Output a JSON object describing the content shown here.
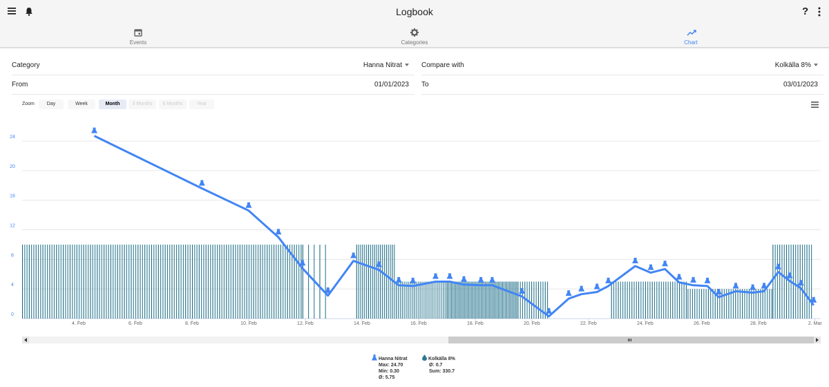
{
  "app": {
    "title": "Logbook"
  },
  "tabs": [
    {
      "label": "Events",
      "icon": "calendar-icon"
    },
    {
      "label": "Categories",
      "icon": "gear-icon"
    },
    {
      "label": "Chart",
      "icon": "trending-up-icon",
      "active": true
    }
  ],
  "filters": {
    "category_label": "Category",
    "category_value": "Hanna Nitrat",
    "compare_label": "Compare with",
    "compare_value": "Kolkälla 8%",
    "from_label": "From",
    "from_value": "01/01/2023",
    "to_label": "To",
    "to_value": "03/01/2023"
  },
  "zoom": {
    "label": "Zoom",
    "options": [
      "Day",
      "Week",
      "Month",
      "3 Months",
      "6 Months",
      "Year"
    ],
    "selected": "Month",
    "disabled": [
      "3 Months",
      "6 Months",
      "Year"
    ]
  },
  "colors": {
    "accent": "#4285f4",
    "bars": "#2d7a93",
    "bars_dark": "#1f6a80"
  },
  "chart_data": {
    "type": "line",
    "x_axis": {
      "unit": "day of February 2023 (2 Mar = 30)",
      "range": [
        2.0,
        30.2
      ],
      "tick_labels": [
        "4. Feb",
        "6. Feb",
        "8. Feb",
        "10. Feb",
        "12. Feb",
        "14. Feb",
        "16. Feb",
        "18. Feb",
        "20. Feb",
        "22. Feb",
        "24. Feb",
        "26. Feb",
        "28. Feb",
        "2. Mar"
      ],
      "tick_values": [
        4,
        6,
        8,
        10,
        12,
        14,
        16,
        18,
        20,
        22,
        24,
        26,
        28,
        30
      ]
    },
    "y_axis": {
      "range": [
        0,
        27
      ],
      "tick_labels": [
        "0",
        "4",
        "8",
        "12",
        "16",
        "20",
        "24"
      ],
      "tick_values": [
        0,
        4,
        8,
        12,
        16,
        20,
        24
      ],
      "grid": true
    },
    "series": [
      {
        "name": "Hanna Nitrat",
        "type": "line",
        "points": [
          [
            4.55,
            24.7
          ],
          [
            8.35,
            17.6
          ],
          [
            10.0,
            14.6
          ],
          [
            11.05,
            11.0
          ],
          [
            11.9,
            6.8
          ],
          [
            12.8,
            3.1
          ],
          [
            13.7,
            7.8
          ],
          [
            14.6,
            6.6
          ],
          [
            15.3,
            4.5
          ],
          [
            15.8,
            4.4
          ],
          [
            16.6,
            5.0
          ],
          [
            17.1,
            5.0
          ],
          [
            17.6,
            4.6
          ],
          [
            18.2,
            4.5
          ],
          [
            18.6,
            4.5
          ],
          [
            19.65,
            3.0
          ],
          [
            20.6,
            0.3
          ],
          [
            21.3,
            2.7
          ],
          [
            21.75,
            3.3
          ],
          [
            22.3,
            3.6
          ],
          [
            22.7,
            4.4
          ],
          [
            23.65,
            7.1
          ],
          [
            24.2,
            6.2
          ],
          [
            24.7,
            6.7
          ],
          [
            25.2,
            4.9
          ],
          [
            25.7,
            4.5
          ],
          [
            26.2,
            4.4
          ],
          [
            26.6,
            2.9
          ],
          [
            27.2,
            3.7
          ],
          [
            27.8,
            3.5
          ],
          [
            28.2,
            3.7
          ],
          [
            28.7,
            6.3
          ],
          [
            29.1,
            5.1
          ],
          [
            29.5,
            4.1
          ],
          [
            29.95,
            1.8
          ]
        ]
      },
      {
        "name": "Kolkälla 8%",
        "type": "bar",
        "segments": [
          {
            "from": 2.0,
            "to": 11.9,
            "value": 10.0,
            "step": 0.08
          },
          {
            "from": 11.9,
            "to": 12.9,
            "value": 10.0,
            "step": 0.2
          },
          {
            "from": 13.8,
            "to": 15.2,
            "value": 10.0,
            "step": 0.07
          },
          {
            "from": 15.2,
            "to": 17.0,
            "value": 5.0,
            "step": 0.07
          },
          {
            "from": 17.0,
            "to": 19.5,
            "value": 5.0,
            "step": 0.05
          },
          {
            "from": 19.5,
            "to": 20.6,
            "value": 5.0,
            "step": 0.08
          },
          {
            "from": 22.8,
            "to": 25.5,
            "value": 5.0,
            "step": 0.08
          },
          {
            "from": 25.5,
            "to": 28.5,
            "value": 4.0,
            "step": 0.08
          },
          {
            "from": 28.5,
            "to": 29.9,
            "value": 10.0,
            "step": 0.08
          }
        ]
      }
    ]
  },
  "legend": {
    "series1": {
      "name": "Hanna Nitrat",
      "max": "Max: 24.70",
      "min": "Min: 0.30",
      "avg": "Ø: 5.75",
      "icon": "flask-icon"
    },
    "series2": {
      "name": "Kolkälla 8%",
      "avg": "Ø: 0.7",
      "sum": "Sum: 330.7",
      "icon": "drop-icon"
    }
  }
}
